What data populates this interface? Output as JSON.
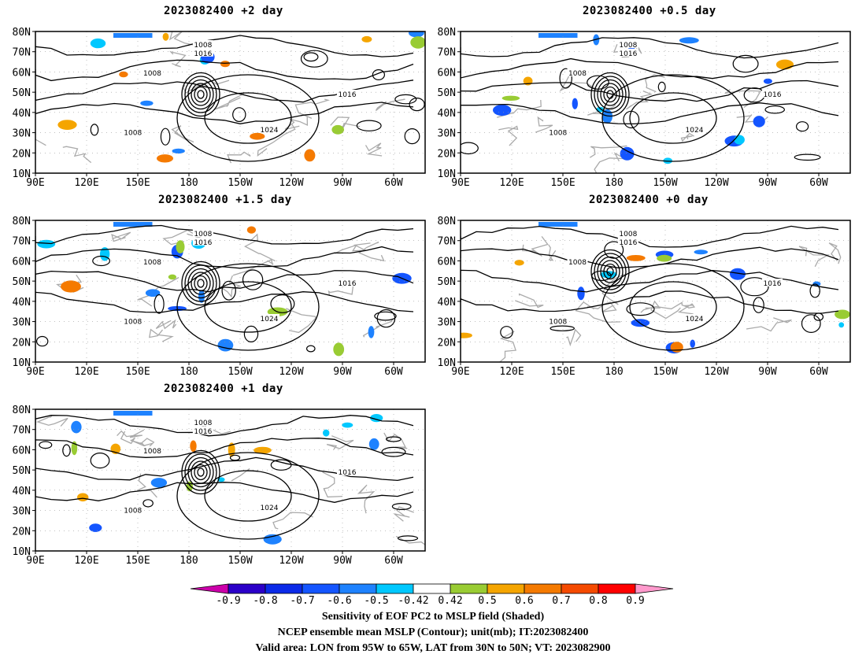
{
  "panels": [
    {
      "title": "2023082400 +2 day"
    },
    {
      "title": "2023082400 +0.5 day"
    },
    {
      "title": "2023082400 +1.5 day"
    },
    {
      "title": "2023082400 +0 day"
    },
    {
      "title": "2023082400 +1 day"
    }
  ],
  "lat_labels": [
    "80N",
    "70N",
    "60N",
    "50N",
    "40N",
    "30N",
    "20N",
    "10N"
  ],
  "lon_labels": [
    "90E",
    "120E",
    "150E",
    "180",
    "150W",
    "120W",
    "90W",
    "60W"
  ],
  "contour_labels": [
    "1008",
    "1016",
    "1024"
  ],
  "colorbar": {
    "ticks": [
      "-0.9",
      "-0.8",
      "-0.7",
      "-0.6",
      "-0.5",
      "-0.42",
      "0.42",
      "0.5",
      "0.6",
      "0.7",
      "0.8",
      "0.9"
    ],
    "colors": [
      "#2b00c8",
      "#0b2ae8",
      "#1455ff",
      "#1e82ff",
      "#00c8ff",
      "#ffffff",
      "#99cc33",
      "#f5a500",
      "#f57a00",
      "#f54a00",
      "#ff0000"
    ],
    "low_color": "#cc00aa",
    "high_color": "#ff99cc"
  },
  "footer": {
    "line1": "Sensitivity of EOF PC2 to MSLP field (Shaded)",
    "line2": "NCEP ensemble mean MSLP (Contour); unit(mb); IT:2023082400",
    "line3": "Valid area: LON from 95W to 65W, LAT from 30N to 50N; VT: 2023082900"
  }
}
